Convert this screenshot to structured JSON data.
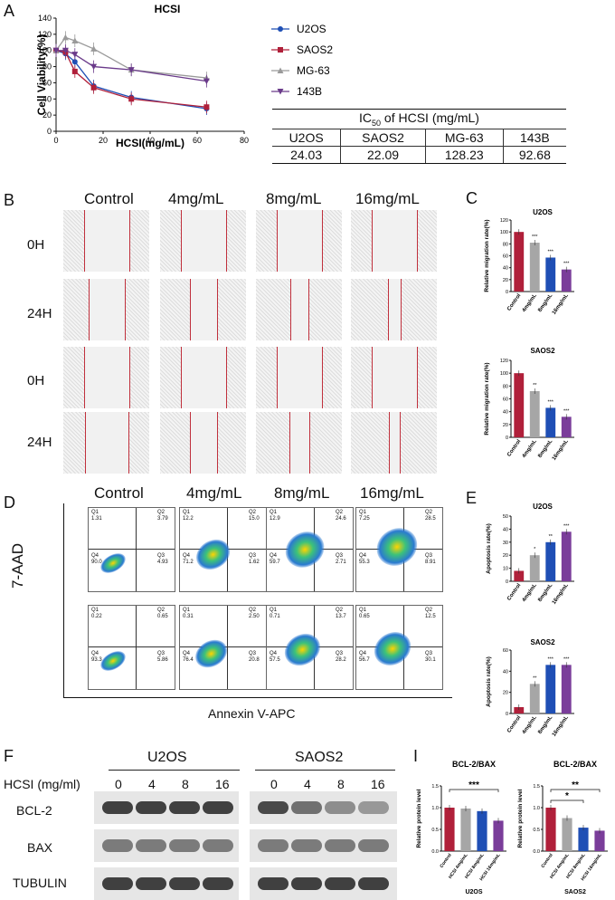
{
  "panels": {
    "a": "A",
    "b": "B",
    "c": "C",
    "d": "D",
    "e": "E",
    "f": "F",
    "i": "I"
  },
  "panel_a": {
    "chart_data": {
      "type": "line",
      "title": "HCSI",
      "xlabel": "HCSI(mg/mL)",
      "ylabel": "Cell Viability(%)",
      "xlim": [
        0,
        80
      ],
      "ylim": [
        0,
        140
      ],
      "x_ticks": [
        "0",
        "20",
        "40",
        "60",
        "80"
      ],
      "y_ticks": [
        "0",
        "20",
        "40",
        "60",
        "80",
        "100",
        "120",
        "140"
      ],
      "x": [
        0,
        4,
        8,
        16,
        32,
        64
      ],
      "series": [
        {
          "name": "U2OS",
          "color": "#1f4fb5",
          "marker": "circle",
          "values": [
            100,
            96,
            86,
            56,
            42,
            28
          ]
        },
        {
          "name": "SAOS2",
          "color": "#b0203a",
          "marker": "square",
          "values": [
            100,
            98,
            74,
            54,
            40,
            30
          ]
        },
        {
          "name": "MG-63",
          "color": "#9a9a9a",
          "marker": "triangle",
          "values": [
            100,
            116,
            112,
            102,
            76,
            66
          ]
        },
        {
          "name": "143B",
          "color": "#6a3a8a",
          "marker": "tri-down",
          "values": [
            100,
            100,
            95,
            80,
            76,
            62
          ]
        }
      ]
    },
    "ic50": {
      "header": "IC50 of HCSI (mg/mL)",
      "header_pre": "IC",
      "header_sub": "50",
      "header_post": " of HCSI (mg/mL)",
      "cols": [
        "U2OS",
        "SAOS2",
        "MG-63",
        "143B"
      ],
      "vals": [
        "24.03",
        "22.09",
        "128.23",
        "92.68"
      ]
    }
  },
  "panel_b": {
    "columns": [
      "Control",
      "4mg/mL",
      "8mg/mL",
      "16mg/mL"
    ],
    "rows": [
      "0H",
      "24H",
      "0H",
      "24H"
    ]
  },
  "panel_c": {
    "chart_data": [
      {
        "type": "bar",
        "title": "U2OS",
        "ylabel": "Relative migration rate(%)",
        "ylim": [
          0,
          120
        ],
        "y_ticks": [
          "0",
          "20",
          "40",
          "60",
          "80",
          "100",
          "120"
        ],
        "categories": [
          "Control",
          "4mg/mL",
          "8mg/mL",
          "16mg/mL"
        ],
        "values": [
          100,
          82,
          57,
          37
        ],
        "sig": [
          "",
          "***",
          "***",
          "***"
        ],
        "colors": [
          "#b0203a",
          "#a6a6a6",
          "#1f4fb5",
          "#7a3d9a"
        ]
      },
      {
        "type": "bar",
        "title": "SAOS2",
        "ylabel": "Relative migration rate(%)",
        "ylim": [
          0,
          120
        ],
        "y_ticks": [
          "0",
          "20",
          "40",
          "60",
          "80",
          "100",
          "120"
        ],
        "categories": [
          "Control",
          "4mg/mL",
          "8mg/mL",
          "16mg/mL"
        ],
        "values": [
          100,
          72,
          46,
          32
        ],
        "sig": [
          "",
          "**",
          "***",
          "***"
        ],
        "colors": [
          "#b0203a",
          "#a6a6a6",
          "#1f4fb5",
          "#7a3d9a"
        ]
      }
    ]
  },
  "panel_d": {
    "columns": [
      "Control",
      "4mg/mL",
      "8mg/mL",
      "16mg/mL"
    ],
    "ylabel": "7-AAD",
    "xlabel": "Annexin V-APC",
    "plots": [
      [
        {
          "q1": "Q1\n1.31",
          "q2": "Q2\n3.79",
          "q3": "Q3\n4.93",
          "q4": "Q4\n90.0"
        },
        {
          "q1": "Q1\n12.2",
          "q2": "Q2\n15.0",
          "q3": "Q3\n1.62",
          "q4": "Q4\n71.2"
        },
        {
          "q1": "Q1\n12.9",
          "q2": "Q2\n24.6",
          "q3": "Q3\n2.71",
          "q4": "Q4\n59.7"
        },
        {
          "q1": "Q1\n7.25",
          "q2": "Q2\n28.5",
          "q3": "Q3\n8.91",
          "q4": "Q4\n55.3"
        }
      ],
      [
        {
          "q1": "Q1\n0.22",
          "q2": "Q2\n0.65",
          "q3": "Q3\n5.86",
          "q4": "Q4\n93.3"
        },
        {
          "q1": "Q1\n0.31",
          "q2": "Q2\n2.50",
          "q3": "Q3\n20.8",
          "q4": "Q4\n76.4"
        },
        {
          "q1": "Q1\n0.71",
          "q2": "Q2\n13.7",
          "q3": "Q3\n28.2",
          "q4": "Q4\n57.5"
        },
        {
          "q1": "Q1\n0.65",
          "q2": "Q2\n12.5",
          "q3": "Q3\n30.1",
          "q4": "Q4\n56.7"
        }
      ]
    ]
  },
  "panel_e": {
    "chart_data": [
      {
        "type": "bar",
        "title": "U2OS",
        "ylabel": "Apoptosis rate(%)",
        "ylim": [
          0,
          50
        ],
        "y_ticks": [
          "0",
          "10",
          "20",
          "30",
          "40",
          "50"
        ],
        "categories": [
          "Control",
          "4mg/mL",
          "8mg/mL",
          "16mg/mL"
        ],
        "values": [
          8,
          20,
          30,
          38
        ],
        "sig": [
          "",
          "*",
          "**",
          "***"
        ],
        "colors": [
          "#b0203a",
          "#a6a6a6",
          "#1f4fb5",
          "#7a3d9a"
        ]
      },
      {
        "type": "bar",
        "title": "SAOS2",
        "ylabel": "Apoptosis rate(%)",
        "ylim": [
          0,
          60
        ],
        "y_ticks": [
          "0",
          "20",
          "40",
          "60"
        ],
        "categories": [
          "Control",
          "4mg/mL",
          "8mg/mL",
          "16mg/mL"
        ],
        "values": [
          6,
          28,
          46,
          46
        ],
        "sig": [
          "",
          "**",
          "***",
          "***"
        ],
        "colors": [
          "#b0203a",
          "#a6a6a6",
          "#1f4fb5",
          "#7a3d9a"
        ]
      }
    ]
  },
  "panel_f": {
    "groups": [
      "U2OS",
      "SAOS2"
    ],
    "conc_label": "HCSI (mg/ml)",
    "conc": [
      "0",
      "4",
      "8",
      "16",
      "0",
      "4",
      "8",
      "16"
    ],
    "proteins": [
      "BCL-2",
      "BAX",
      "TUBULIN"
    ]
  },
  "panel_i": {
    "chart_data": [
      {
        "type": "bar",
        "title": "BCL-2/BAX",
        "ylabel": "Relative protein level",
        "xlabel": "U2OS",
        "ylim": [
          0,
          1.5
        ],
        "y_ticks": [
          "0.0",
          "0.5",
          "1.0",
          "1.5"
        ],
        "categories": [
          "Control",
          "HCSI 4mg/mL",
          "HCSI 8mg/mL",
          "HCSI 16mg/mL"
        ],
        "values": [
          1.0,
          0.98,
          0.92,
          0.7
        ],
        "colors": [
          "#b0203a",
          "#a6a6a6",
          "#1f4fb5",
          "#7a3d9a"
        ],
        "sig_brackets": [
          "***"
        ]
      },
      {
        "type": "bar",
        "title": "BCL-2/BAX",
        "ylabel": "Relative protein level",
        "xlabel": "SAOS2",
        "ylim": [
          0,
          1.5
        ],
        "y_ticks": [
          "0.0",
          "0.5",
          "1.0",
          "1.5"
        ],
        "categories": [
          "Control",
          "HCSI 4mg/mL",
          "HCSI 8mg/mL",
          "HCSI 16mg/mL"
        ],
        "values": [
          1.0,
          0.76,
          0.54,
          0.47
        ],
        "colors": [
          "#b0203a",
          "#a6a6a6",
          "#1f4fb5",
          "#7a3d9a"
        ],
        "sig_brackets": [
          "*",
          "**"
        ]
      }
    ]
  }
}
